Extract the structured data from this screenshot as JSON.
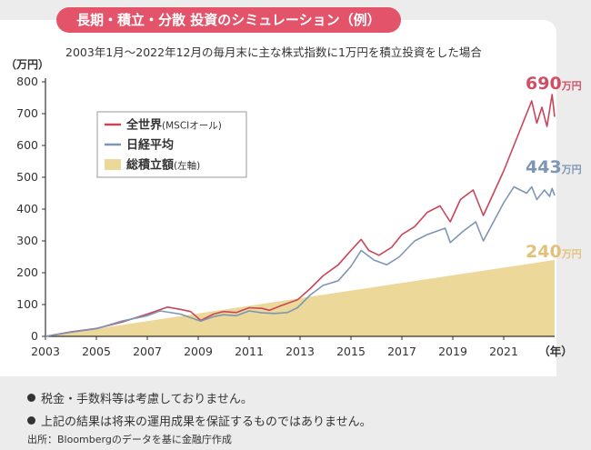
{
  "title": "長期・積立・分散 投資のシミュレーション（例）",
  "subtitle": "2003年1月〜2022年12月の毎月末に主な株式指数に1万円を積立投資をした場合",
  "notes": [
    "税金・手数料等は考慮しておりません。",
    "上記の結果は将来の運用成果を保証するものではありません。"
  ],
  "source": "出所：Bloombergのデータを基に金融庁作成",
  "chart_data": {
    "type": "line",
    "ylabel": "（万円）",
    "xlabel": "（年）",
    "ylim": [
      0,
      800
    ],
    "yticks": [
      0,
      100,
      200,
      300,
      400,
      500,
      600,
      700,
      800
    ],
    "xlim": [
      2003,
      2023
    ],
    "xticks": [
      2003,
      2005,
      2007,
      2009,
      2011,
      2013,
      2015,
      2017,
      2019,
      2021
    ],
    "grid": false,
    "legend_position": "upper-left",
    "series": [
      {
        "name": "全世界",
        "name_suffix": "(MSCIオール)",
        "type": "line",
        "color": "#c8465a",
        "end_label": "690",
        "end_unit": "万円",
        "points": [
          [
            2003.0,
            0
          ],
          [
            2004.0,
            14
          ],
          [
            2005.0,
            25
          ],
          [
            2006.0,
            45
          ],
          [
            2007.0,
            70
          ],
          [
            2007.8,
            92
          ],
          [
            2008.3,
            85
          ],
          [
            2008.7,
            78
          ],
          [
            2009.1,
            50
          ],
          [
            2009.6,
            70
          ],
          [
            2010.0,
            78
          ],
          [
            2010.5,
            75
          ],
          [
            2011.0,
            90
          ],
          [
            2011.5,
            88
          ],
          [
            2011.8,
            82
          ],
          [
            2012.3,
            98
          ],
          [
            2012.9,
            115
          ],
          [
            2013.4,
            150
          ],
          [
            2013.9,
            190
          ],
          [
            2014.5,
            225
          ],
          [
            2015.0,
            270
          ],
          [
            2015.4,
            305
          ],
          [
            2015.7,
            270
          ],
          [
            2016.1,
            255
          ],
          [
            2016.6,
            280
          ],
          [
            2017.0,
            320
          ],
          [
            2017.5,
            345
          ],
          [
            2018.0,
            390
          ],
          [
            2018.5,
            410
          ],
          [
            2018.9,
            360
          ],
          [
            2019.3,
            430
          ],
          [
            2019.8,
            460
          ],
          [
            2020.2,
            380
          ],
          [
            2020.6,
            450
          ],
          [
            2021.0,
            520
          ],
          [
            2021.5,
            620
          ],
          [
            2021.9,
            700
          ],
          [
            2022.1,
            740
          ],
          [
            2022.3,
            670
          ],
          [
            2022.5,
            720
          ],
          [
            2022.7,
            660
          ],
          [
            2022.9,
            760
          ],
          [
            2023.0,
            690
          ]
        ]
      },
      {
        "name": "日経平均",
        "type": "line",
        "color": "#7e96b6",
        "end_label": "443",
        "end_unit": "万円",
        "points": [
          [
            2003.0,
            0
          ],
          [
            2004.0,
            13
          ],
          [
            2005.0,
            24
          ],
          [
            2006.0,
            48
          ],
          [
            2007.0,
            65
          ],
          [
            2007.5,
            80
          ],
          [
            2008.3,
            70
          ],
          [
            2009.1,
            48
          ],
          [
            2009.6,
            62
          ],
          [
            2010.0,
            68
          ],
          [
            2010.5,
            65
          ],
          [
            2011.0,
            80
          ],
          [
            2011.5,
            74
          ],
          [
            2012.0,
            72
          ],
          [
            2012.5,
            75
          ],
          [
            2012.9,
            90
          ],
          [
            2013.4,
            130
          ],
          [
            2013.9,
            160
          ],
          [
            2014.5,
            175
          ],
          [
            2015.0,
            220
          ],
          [
            2015.4,
            270
          ],
          [
            2015.9,
            240
          ],
          [
            2016.4,
            225
          ],
          [
            2016.9,
            250
          ],
          [
            2017.5,
            300
          ],
          [
            2018.0,
            320
          ],
          [
            2018.7,
            340
          ],
          [
            2018.9,
            295
          ],
          [
            2019.4,
            330
          ],
          [
            2019.9,
            360
          ],
          [
            2020.2,
            300
          ],
          [
            2020.6,
            360
          ],
          [
            2021.0,
            420
          ],
          [
            2021.4,
            470
          ],
          [
            2021.9,
            450
          ],
          [
            2022.1,
            470
          ],
          [
            2022.3,
            430
          ],
          [
            2022.6,
            460
          ],
          [
            2022.8,
            440
          ],
          [
            2022.9,
            465
          ],
          [
            2023.0,
            443
          ]
        ]
      },
      {
        "name": "総積立額",
        "name_suffix": "(左軸)",
        "type": "area",
        "color": "#ecd898",
        "end_label": "240",
        "end_unit": "万円",
        "points": [
          [
            2003.0,
            0
          ],
          [
            2023.0,
            240
          ]
        ]
      }
    ]
  }
}
